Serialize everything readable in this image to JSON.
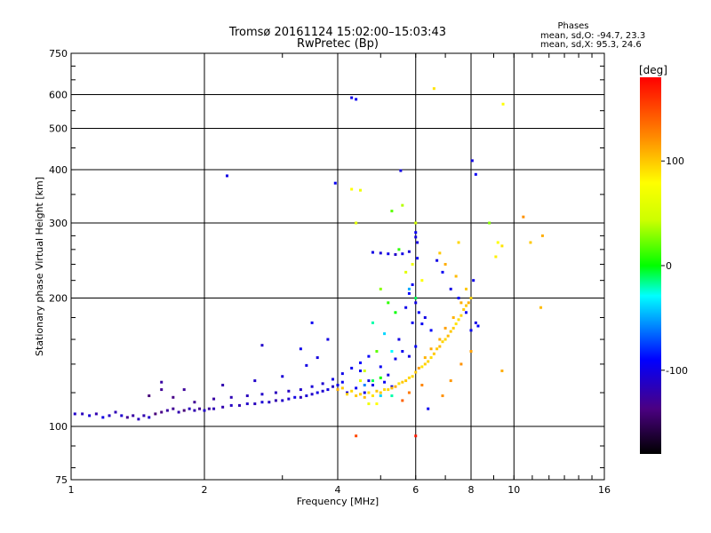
{
  "chart_data": {
    "type": "scatter",
    "title": "Tromsø 20161124 15:02:00–15:03:43",
    "subtitle": "RwPretec (Bp)",
    "xlabel": "Frequency [MHz]",
    "ylabel": "Stationary phase Virtual Height [km]",
    "x_scale": "log",
    "y_scale": "log",
    "xlim": [
      1,
      16
    ],
    "ylim": [
      75,
      750
    ],
    "x_ticks": [
      {
        "value": 1,
        "label": "1"
      },
      {
        "value": 2,
        "label": "2"
      },
      {
        "value": 4,
        "label": "4"
      },
      {
        "value": 6,
        "label": "6"
      },
      {
        "value": 8,
        "label": "8"
      },
      {
        "value": 10,
        "label": "10"
      },
      {
        "value": 16,
        "label": "16"
      }
    ],
    "y_ticks": [
      {
        "value": 75,
        "label": "75"
      },
      {
        "value": 100,
        "label": "100"
      },
      {
        "value": 200,
        "label": "200"
      },
      {
        "value": 300,
        "label": "300"
      },
      {
        "value": 400,
        "label": "400"
      },
      {
        "value": 500,
        "label": "500"
      },
      {
        "value": 600,
        "label": "600"
      },
      {
        "value": 750,
        "label": "750"
      }
    ],
    "grid": true,
    "grid_x": [
      1,
      2,
      4,
      6,
      8,
      10,
      16
    ],
    "grid_y": [
      100,
      200,
      300,
      400,
      500,
      600,
      750
    ],
    "stats_header": "Phases",
    "stats_lines": [
      "mean, sd,O: -94.7, 23.3",
      "mean, sd,X:  95.3, 24.6"
    ],
    "colorbar": {
      "label": "[deg]",
      "range": [
        -180,
        180
      ],
      "ticks": [
        {
          "value": 100,
          "label": "100"
        },
        {
          "value": 0,
          "label": "0"
        },
        {
          "value": -100,
          "label": "-100"
        }
      ]
    },
    "series": [
      {
        "mode": "O",
        "phase_mean": -94.7,
        "points": [
          [
            1.02,
            107,
            -110
          ],
          [
            1.06,
            107,
            -115
          ],
          [
            1.1,
            106,
            -105
          ],
          [
            1.14,
            107,
            -120
          ],
          [
            1.18,
            105,
            -100
          ],
          [
            1.22,
            106,
            -112
          ],
          [
            1.26,
            108,
            -118
          ],
          [
            1.3,
            106,
            -108
          ],
          [
            1.34,
            105,
            -130
          ],
          [
            1.38,
            106,
            -125
          ],
          [
            1.42,
            104,
            -115
          ],
          [
            1.46,
            106,
            -120
          ],
          [
            1.5,
            105,
            -110
          ],
          [
            1.55,
            107,
            -140
          ],
          [
            1.6,
            108,
            -135
          ],
          [
            1.65,
            109,
            -125
          ],
          [
            1.7,
            110,
            -130
          ],
          [
            1.75,
            108,
            -120
          ],
          [
            1.8,
            109,
            -140
          ],
          [
            1.85,
            110,
            -115
          ],
          [
            1.9,
            109,
            -120
          ],
          [
            1.95,
            110,
            -130
          ],
          [
            2.0,
            109,
            -110
          ],
          [
            2.05,
            110,
            -125
          ],
          [
            2.1,
            110,
            -118
          ],
          [
            2.2,
            111,
            -120
          ],
          [
            2.3,
            112,
            -112
          ],
          [
            2.4,
            112,
            -118
          ],
          [
            2.5,
            113,
            -110
          ],
          [
            2.6,
            113,
            -115
          ],
          [
            2.7,
            114,
            -105
          ],
          [
            2.8,
            114,
            -112
          ],
          [
            2.9,
            115,
            -120
          ],
          [
            3.0,
            115,
            -110
          ],
          [
            3.1,
            116,
            -108
          ],
          [
            3.2,
            117,
            -100
          ],
          [
            3.3,
            117,
            -115
          ],
          [
            3.4,
            118,
            -105
          ],
          [
            3.5,
            119,
            -110
          ],
          [
            3.6,
            120,
            -100
          ],
          [
            3.7,
            121,
            -108
          ],
          [
            3.8,
            122,
            -100
          ],
          [
            3.9,
            124,
            -112
          ],
          [
            4.0,
            125,
            -100
          ],
          [
            4.1,
            127,
            -95
          ],
          [
            1.5,
            118,
            -140
          ],
          [
            1.6,
            122,
            -130
          ],
          [
            1.7,
            117,
            -135
          ],
          [
            1.9,
            114,
            -130
          ],
          [
            2.1,
            116,
            -125
          ],
          [
            2.3,
            117,
            -118
          ],
          [
            2.5,
            118,
            -115
          ],
          [
            2.7,
            119,
            -110
          ],
          [
            2.9,
            120,
            -115
          ],
          [
            3.1,
            121,
            -112
          ],
          [
            3.3,
            122,
            -110
          ],
          [
            3.5,
            124,
            -105
          ],
          [
            3.7,
            126,
            -108
          ],
          [
            3.9,
            129,
            -100
          ],
          [
            4.1,
            133,
            -98
          ],
          [
            4.3,
            137,
            -95
          ],
          [
            4.5,
            141,
            -90
          ],
          [
            4.7,
            146,
            -92
          ],
          [
            1.6,
            127,
            -125
          ],
          [
            1.8,
            122,
            -128
          ],
          [
            2.2,
            125,
            -120
          ],
          [
            2.6,
            128,
            -110
          ],
          [
            3.0,
            131,
            -105
          ],
          [
            3.4,
            139,
            -100
          ],
          [
            3.6,
            145,
            -102
          ],
          [
            3.3,
            152,
            -98
          ],
          [
            3.5,
            175,
            -95
          ],
          [
            3.8,
            160,
            -100
          ],
          [
            2.7,
            155,
            -110
          ],
          [
            2.25,
            387,
            -100
          ],
          [
            3.95,
            372,
            -95
          ],
          [
            4.3,
            590,
            -100
          ],
          [
            4.4,
            585,
            -95
          ],
          [
            4.8,
            256,
            -100
          ],
          [
            5.0,
            255,
            -105
          ],
          [
            5.2,
            254,
            -98
          ],
          [
            5.4,
            253,
            -110
          ],
          [
            5.6,
            254,
            -100
          ],
          [
            5.8,
            257,
            -105
          ],
          [
            6.0,
            278,
            -100
          ],
          [
            6.0,
            285,
            -95
          ],
          [
            6.05,
            270,
            -102
          ],
          [
            5.8,
            205,
            -90
          ],
          [
            5.9,
            215,
            -95
          ],
          [
            6.0,
            195,
            -100
          ],
          [
            6.1,
            185,
            -92
          ],
          [
            5.7,
            190,
            -98
          ],
          [
            6.2,
            174,
            -95
          ],
          [
            6.3,
            180,
            -100
          ],
          [
            6.5,
            168,
            -92
          ],
          [
            5.5,
            160,
            -100
          ],
          [
            5.9,
            175,
            -95
          ],
          [
            6.7,
            245,
            -100
          ],
          [
            6.9,
            230,
            -95
          ],
          [
            7.2,
            210,
            -100
          ],
          [
            7.5,
            200,
            -92
          ],
          [
            7.8,
            185,
            -95
          ],
          [
            8.0,
            200,
            -100
          ],
          [
            8.1,
            220,
            -98
          ],
          [
            8.2,
            175,
            -100
          ],
          [
            8.0,
            168,
            -95
          ],
          [
            8.3,
            172,
            -92
          ],
          [
            8.05,
            420,
            -100
          ],
          [
            8.2,
            390,
            -95
          ],
          [
            5.55,
            398,
            -100
          ],
          [
            6.05,
            248,
            -95
          ],
          [
            4.5,
            135,
            -95
          ],
          [
            4.7,
            128,
            -100
          ],
          [
            5.0,
            138,
            -95
          ],
          [
            5.2,
            132,
            -102
          ],
          [
            5.4,
            144,
            -98
          ],
          [
            5.6,
            150,
            -95
          ],
          [
            5.8,
            146,
            -100
          ],
          [
            6.0,
            154,
            -92
          ],
          [
            4.4,
            123,
            -95
          ],
          [
            4.6,
            120,
            -100
          ],
          [
            4.8,
            125,
            -98
          ],
          [
            5.1,
            127,
            -95
          ],
          [
            5.3,
            124,
            -100
          ],
          [
            6.4,
            110,
            -95
          ],
          [
            4.2,
            120,
            -105
          ]
        ]
      },
      {
        "mode": "X",
        "phase_mean": 95.3,
        "points": [
          [
            4.0,
            122,
            110
          ],
          [
            4.2,
            119,
            95
          ],
          [
            4.4,
            118,
            100
          ],
          [
            4.6,
            117,
            105
          ],
          [
            4.8,
            118,
            90
          ],
          [
            5.0,
            120,
            100
          ],
          [
            5.2,
            122,
            95
          ],
          [
            5.4,
            124,
            110
          ],
          [
            5.6,
            127,
            100
          ],
          [
            5.8,
            130,
            95
          ],
          [
            6.0,
            134,
            100
          ],
          [
            6.2,
            138,
            90
          ],
          [
            6.4,
            142,
            95
          ],
          [
            6.6,
            148,
            100
          ],
          [
            6.8,
            154,
            105
          ],
          [
            7.0,
            160,
            95
          ],
          [
            7.2,
            167,
            100
          ],
          [
            7.4,
            174,
            90
          ],
          [
            7.6,
            182,
            95
          ],
          [
            7.8,
            192,
            100
          ],
          [
            8.0,
            200,
            95
          ],
          [
            7.9,
            195,
            110
          ],
          [
            7.7,
            188,
            100
          ],
          [
            7.5,
            178,
            92
          ],
          [
            7.3,
            170,
            98
          ],
          [
            7.1,
            163,
            105
          ],
          [
            6.9,
            158,
            95
          ],
          [
            6.7,
            152,
            100
          ],
          [
            6.5,
            145,
            92
          ],
          [
            6.3,
            140,
            98
          ],
          [
            5.9,
            131,
            95
          ],
          [
            5.7,
            128,
            100
          ],
          [
            5.5,
            126,
            90
          ],
          [
            5.3,
            123,
            105
          ],
          [
            5.1,
            122,
            95
          ],
          [
            4.9,
            121,
            100
          ],
          [
            4.7,
            120,
            92
          ],
          [
            4.5,
            119,
            98
          ],
          [
            4.3,
            121,
            95
          ],
          [
            4.1,
            123,
            100
          ],
          [
            6.1,
            137,
            115
          ],
          [
            6.3,
            145,
            108
          ],
          [
            6.5,
            152,
            112
          ],
          [
            6.8,
            160,
            110
          ],
          [
            7.0,
            170,
            115
          ],
          [
            7.3,
            180,
            108
          ],
          [
            7.6,
            195,
            110
          ],
          [
            7.8,
            210,
            100
          ],
          [
            7.4,
            225,
            105
          ],
          [
            7.0,
            240,
            110
          ],
          [
            6.8,
            255,
            100
          ],
          [
            7.5,
            270,
            95
          ],
          [
            6.6,
            620,
            90
          ],
          [
            9.45,
            570,
            80
          ],
          [
            4.3,
            360,
            80
          ],
          [
            4.5,
            358,
            70
          ],
          [
            4.4,
            300,
            60
          ],
          [
            5.3,
            320,
            20
          ],
          [
            5.6,
            330,
            40
          ],
          [
            5.0,
            210,
            30
          ],
          [
            5.2,
            195,
            10
          ],
          [
            5.4,
            185,
            0
          ],
          [
            4.8,
            175,
            -20
          ],
          [
            5.1,
            165,
            -40
          ],
          [
            5.3,
            150,
            -30
          ],
          [
            5.7,
            230,
            60
          ],
          [
            5.9,
            240,
            70
          ],
          [
            6.2,
            220,
            80
          ],
          [
            4.9,
            150,
            20
          ],
          [
            5.0,
            130,
            0
          ],
          [
            4.6,
            135,
            50
          ],
          [
            4.5,
            128,
            60
          ],
          [
            4.7,
            113,
            70
          ],
          [
            4.9,
            113,
            80
          ],
          [
            9.2,
            270,
            80
          ],
          [
            9.4,
            265,
            90
          ],
          [
            9.1,
            250,
            85
          ],
          [
            10.5,
            310,
            120
          ],
          [
            10.9,
            270,
            100
          ],
          [
            11.6,
            280,
            110
          ],
          [
            11.5,
            190,
            105
          ],
          [
            9.4,
            135,
            110
          ],
          [
            5.6,
            115,
            140
          ],
          [
            6.0,
            95,
            170
          ],
          [
            4.4,
            95,
            150
          ],
          [
            5.8,
            120,
            130
          ],
          [
            6.2,
            125,
            125
          ],
          [
            6.9,
            118,
            120
          ],
          [
            7.2,
            128,
            118
          ],
          [
            7.6,
            140,
            120
          ],
          [
            8.0,
            150,
            115
          ],
          [
            4.6,
            125,
            -60
          ],
          [
            5.0,
            118,
            -40
          ],
          [
            5.3,
            118,
            -20
          ],
          [
            4.8,
            128,
            -10
          ],
          [
            5.5,
            260,
            10
          ],
          [
            5.8,
            210,
            -50
          ],
          [
            6.0,
            200,
            -10
          ],
          [
            6.0,
            300,
            50
          ],
          [
            8.8,
            300,
            30
          ]
        ]
      }
    ]
  }
}
